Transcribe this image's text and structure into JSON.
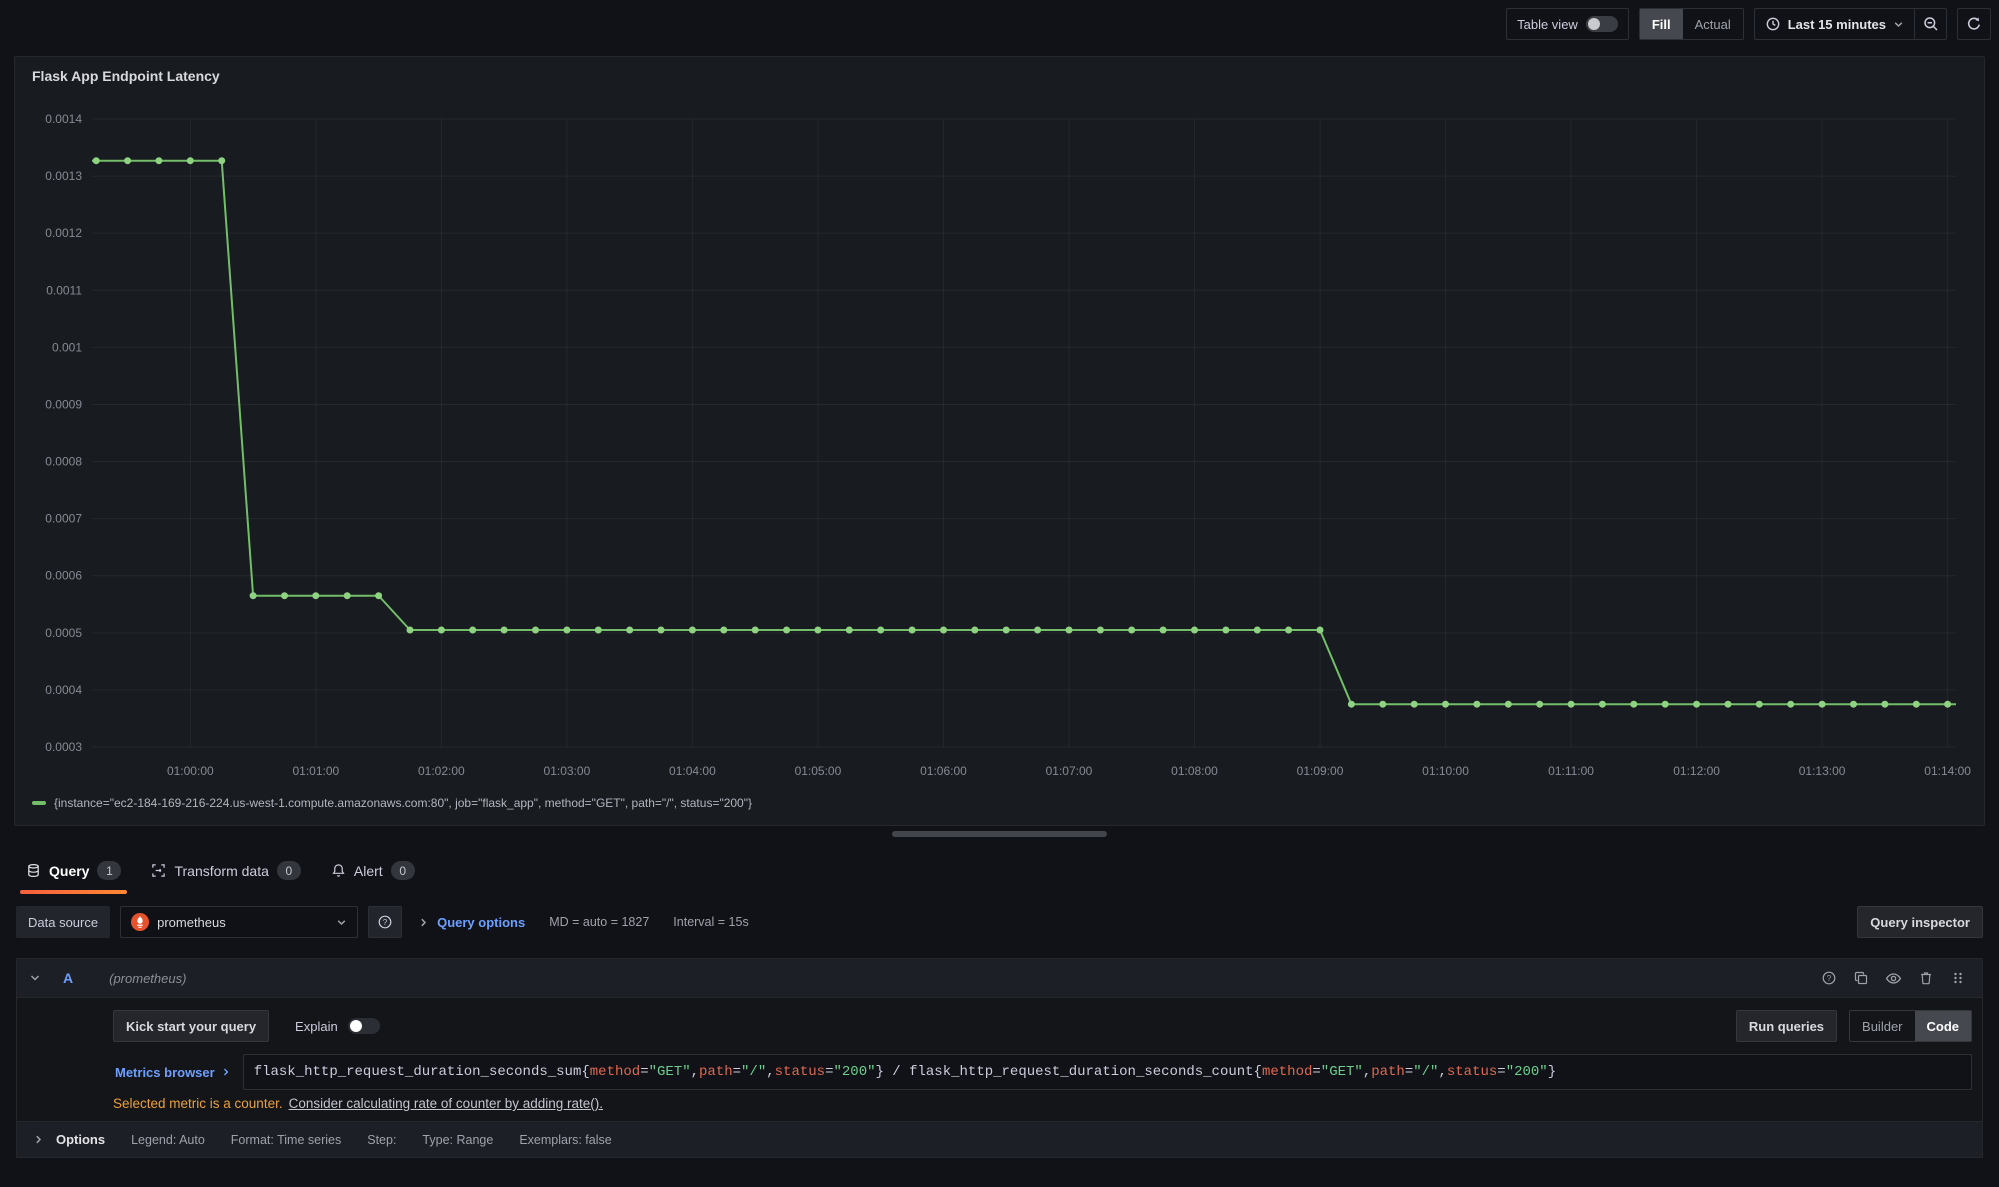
{
  "toolbar": {
    "table_view_label": "Table view",
    "fill_label": "Fill",
    "actual_label": "Actual",
    "time_range_label": "Last 15 minutes"
  },
  "panel": {
    "title": "Flask App Endpoint Latency"
  },
  "chart_data": {
    "type": "line",
    "title": "Flask App Endpoint Latency",
    "x_start": "00:59:15",
    "x_step_seconds": 15,
    "x_domain": [
      "00:59:13",
      "01:14:04"
    ],
    "ylim": [
      0.0003,
      0.0014
    ],
    "grid": true,
    "legend_position": "bottom",
    "line_color": "#73bf69",
    "point_color": "#8ed282",
    "grid_color": "rgba(204,204,220,0.07)",
    "axis_text_color": "rgba(204,204,220,0.62)",
    "y_ticks": [
      "0.0014",
      "0.0013",
      "0.0012",
      "0.0011",
      "0.001",
      "0.0009",
      "0.0008",
      "0.0007",
      "0.0006",
      "0.0005",
      "0.0004",
      "0.0003"
    ],
    "x_ticks": [
      "01:00:00",
      "01:01:00",
      "01:02:00",
      "01:03:00",
      "01:04:00",
      "01:05:00",
      "01:06:00",
      "01:07:00",
      "01:08:00",
      "01:09:00",
      "01:10:00",
      "01:11:00",
      "01:12:00",
      "01:13:00",
      "01:14:00"
    ],
    "series": [
      {
        "name": "{instance=\"ec2-184-169-216-224.us-west-1.compute.amazonaws.com:80\", job=\"flask_app\", method=\"GET\", path=\"/\", status=\"200\"}",
        "color": "#73bf69",
        "values": [
          0.001327,
          0.001327,
          0.001327,
          0.001327,
          0.001327,
          0.000565,
          0.000565,
          0.000565,
          0.000565,
          0.000565,
          0.000505,
          0.000505,
          0.000505,
          0.000505,
          0.000505,
          0.000505,
          0.000505,
          0.000505,
          0.000505,
          0.000505,
          0.000505,
          0.000505,
          0.000505,
          0.000505,
          0.000505,
          0.000505,
          0.000505,
          0.000505,
          0.000505,
          0.000505,
          0.000505,
          0.000505,
          0.000505,
          0.000505,
          0.000505,
          0.000505,
          0.000505,
          0.000505,
          0.000505,
          0.000505,
          0.000375,
          0.000375,
          0.000375,
          0.000375,
          0.000375,
          0.000375,
          0.000375,
          0.000375,
          0.000375,
          0.000375,
          0.000375,
          0.000375,
          0.000375,
          0.000375,
          0.000375,
          0.000375,
          0.000375,
          0.000375,
          0.000375,
          0.000375
        ]
      }
    ]
  },
  "tabs": {
    "query_label": "Query",
    "query_count": "1",
    "transform_label": "Transform data",
    "transform_count": "0",
    "alert_label": "Alert",
    "alert_count": "0"
  },
  "datasource_row": {
    "label": "Data source",
    "value": "prometheus",
    "query_options_label": "Query options",
    "md_text": "MD = auto = 1827",
    "interval_text": "Interval = 15s",
    "inspector_label": "Query inspector"
  },
  "query_row": {
    "ref_id": "A",
    "ds_hint": "(prometheus)"
  },
  "query_toolbar": {
    "kick_start_label": "Kick start your query",
    "explain_label": "Explain",
    "run_queries_label": "Run queries",
    "builder_label": "Builder",
    "code_label": "Code"
  },
  "query_editor": {
    "metrics_browser_label": "Metrics browser",
    "tokens": [
      {
        "k": "plain",
        "v": "flask_http_request_duration_seconds_sum{"
      },
      {
        "k": "name",
        "v": "method"
      },
      {
        "k": "plain",
        "v": "="
      },
      {
        "k": "str",
        "v": "\"GET\""
      },
      {
        "k": "plain",
        "v": ","
      },
      {
        "k": "name",
        "v": "path"
      },
      {
        "k": "plain",
        "v": "="
      },
      {
        "k": "str",
        "v": "\"/\""
      },
      {
        "k": "plain",
        "v": ","
      },
      {
        "k": "name",
        "v": "status"
      },
      {
        "k": "plain",
        "v": "="
      },
      {
        "k": "str",
        "v": "\"200\""
      },
      {
        "k": "plain",
        "v": "} / flask_http_request_duration_seconds_count{"
      },
      {
        "k": "name",
        "v": "method"
      },
      {
        "k": "plain",
        "v": "="
      },
      {
        "k": "str",
        "v": "\"GET\""
      },
      {
        "k": "plain",
        "v": ","
      },
      {
        "k": "name",
        "v": "path"
      },
      {
        "k": "plain",
        "v": "="
      },
      {
        "k": "str",
        "v": "\"/\""
      },
      {
        "k": "plain",
        "v": ","
      },
      {
        "k": "name",
        "v": "status"
      },
      {
        "k": "plain",
        "v": "="
      },
      {
        "k": "str",
        "v": "\"200\""
      },
      {
        "k": "plain",
        "v": "}"
      }
    ]
  },
  "warning": {
    "text": "Selected metric is a counter.",
    "link": "Consider calculating rate of counter by adding rate()."
  },
  "options_row": {
    "title": "Options",
    "legend": "Legend: Auto",
    "format": "Format: Time series",
    "step": "Step:",
    "type": "Type: Range",
    "exemplars": "Exemplars: false"
  },
  "colors": {
    "accent_orange_gradient": [
      "#f55f3e",
      "#ff8833"
    ],
    "series_green": "#73bf69",
    "link_blue": "#6e9fff",
    "warning_amber": "#eba13a",
    "prometheus_orange": "#e6522c"
  },
  "icons": [
    "clock-icon",
    "chevron-down-icon",
    "zoom-out-icon",
    "refresh-icon",
    "database-icon",
    "transform-icon",
    "bell-icon",
    "prometheus-logo",
    "help-icon",
    "chevron-right-icon",
    "copy-icon",
    "eye-icon",
    "trash-icon",
    "drag-handle-icon"
  ]
}
